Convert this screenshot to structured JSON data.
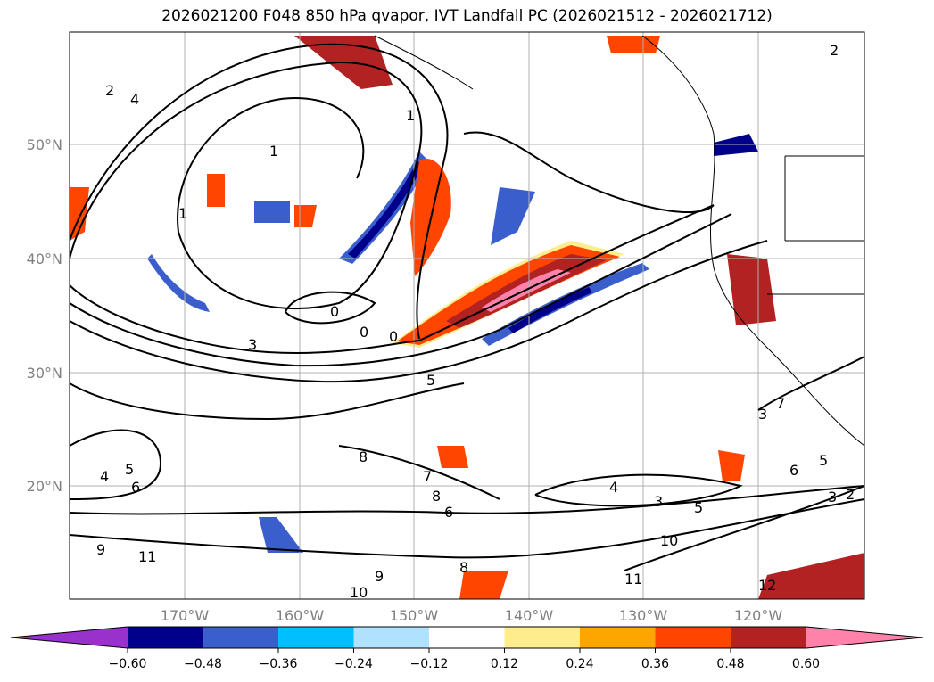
{
  "chart_data": {
    "type": "contour-map",
    "title": "2026021200 F048 850 hPa qvapor, IVT Landfall PC (2026021512 - 2026021712)",
    "lon_ticks": [
      "170°W",
      "160°W",
      "150°W",
      "140°W",
      "130°W",
      "120°W"
    ],
    "lat_ticks": [
      "50°N",
      "40°N",
      "30°N",
      "20°N"
    ],
    "lon_range": [
      -180,
      -110.7
    ],
    "lat_range": [
      10,
      60
    ],
    "grid": true,
    "colorbar": {
      "location": "bottom",
      "extend": "both",
      "levels": [
        -0.6,
        -0.48,
        -0.36,
        -0.24,
        -0.12,
        0.12,
        0.24,
        0.36,
        0.48,
        0.6
      ],
      "tick_labels": [
        "−0.60",
        "−0.48",
        "−0.36",
        "−0.24",
        "−0.12",
        "0.12",
        "0.24",
        "0.36",
        "0.48",
        "0.60"
      ],
      "colors": [
        "#9932cc",
        "#00008b",
        "#3a5fcd",
        "#00bfff",
        "#b0e2ff",
        "#ffffff",
        "#ffec8b",
        "#ffa500",
        "#ff4500",
        "#b22222",
        "#ff82ab"
      ]
    },
    "contour_labels": [
      "2",
      "4",
      "1",
      "1",
      "1",
      "0",
      "0",
      "0",
      "3",
      "5",
      "8",
      "7",
      "8",
      "6",
      "4",
      "3",
      "5",
      "10",
      "11",
      "9",
      "10",
      "12",
      "6",
      "5",
      "3",
      "2",
      "9",
      "11",
      "4",
      "5",
      "6",
      "8",
      "2",
      "3",
      "7"
    ]
  }
}
